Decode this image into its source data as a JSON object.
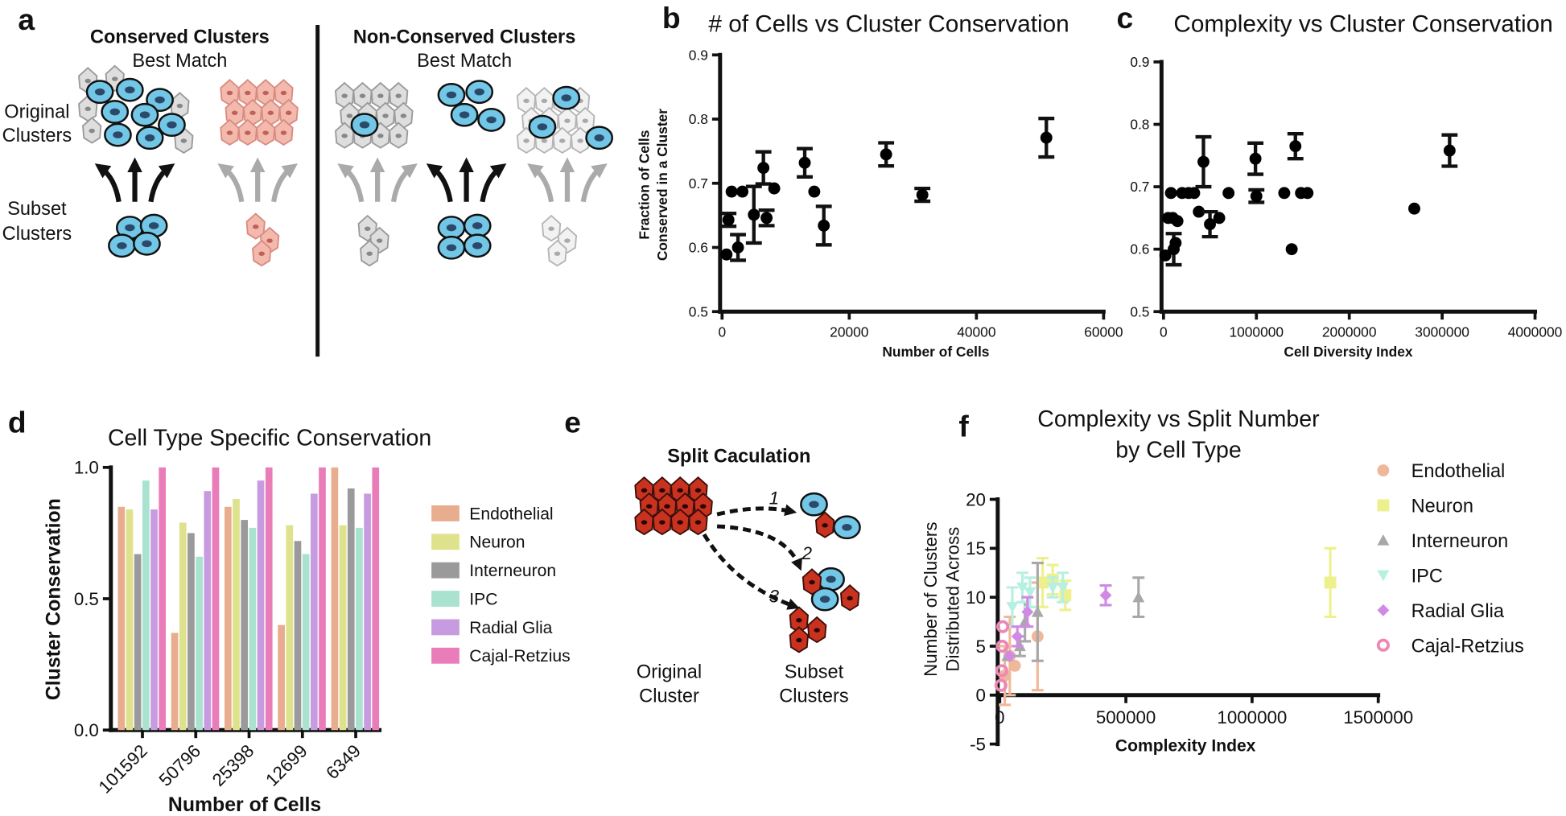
{
  "diagram_a": {
    "panel": "a",
    "conserved_title": "Conserved Clusters",
    "conserved_subtitle": "Best Match",
    "non_conserved_title": "Non-Conserved Clusters",
    "non_conserved_subtitle": "Best Match",
    "original_label": [
      "Original",
      "Clusters"
    ],
    "subset_label": [
      "Subset",
      "Clusters"
    ]
  },
  "diagram_e": {
    "panel": "e",
    "title": "Split Caculation",
    "steps": [
      "1",
      "2",
      "3"
    ],
    "original_label": [
      "Original",
      "Cluster"
    ],
    "subset_label": [
      "Subset",
      "Clusters"
    ]
  },
  "chart_data": [
    {
      "type": "scatter",
      "panel": "b",
      "title": "# of Cells vs Cluster Conservation",
      "x_label": "Number of Cells",
      "y_label": [
        "Fraction of Cells",
        "Conserved in a Cluster"
      ],
      "color": "#000000",
      "marker": "circle",
      "x": [
        700,
        1000,
        1500,
        2500,
        3200,
        5000,
        6500,
        7000,
        8200,
        13000,
        14500,
        16000,
        25800,
        31500,
        51000
      ],
      "values": [
        0.589,
        0.643,
        0.687,
        0.6,
        0.687,
        0.651,
        0.724,
        0.646,
        0.692,
        0.732,
        0.687,
        0.634,
        0.745,
        0.682,
        0.771
      ],
      "errors": [
        null,
        0.01,
        null,
        0.02,
        null,
        0.044,
        0.025,
        0.012,
        null,
        0.022,
        null,
        0.03,
        0.018,
        0.01,
        0.03
      ],
      "xlim": [
        0,
        60000
      ],
      "xticks": [
        0,
        20000,
        40000,
        60000
      ],
      "ylim": [
        0.5,
        0.9
      ],
      "yticks": [
        0.5,
        0.6,
        0.7,
        0.8,
        0.9
      ]
    },
    {
      "type": "scatter",
      "panel": "c",
      "title": "Complexity vs Cluster Conservation",
      "x_label": "Cell Diversity Index",
      "color": "#000000",
      "marker": "circle",
      "x": [
        20000,
        50000,
        80000,
        100000,
        110000,
        130000,
        150000,
        200000,
        270000,
        330000,
        380000,
        430000,
        500000,
        600000,
        700000,
        990000,
        1000000,
        1300000,
        1380000,
        1420000,
        1480000,
        1550000,
        2700000,
        3080000
      ],
      "values": [
        0.59,
        0.65,
        0.69,
        0.65,
        0.6,
        0.61,
        0.645,
        0.69,
        0.69,
        0.69,
        0.66,
        0.74,
        0.64,
        0.65,
        0.69,
        0.745,
        0.685,
        0.69,
        0.6,
        0.765,
        0.69,
        0.69,
        0.665,
        0.758
      ],
      "errors": [
        null,
        null,
        null,
        null,
        0.025,
        null,
        null,
        null,
        null,
        null,
        null,
        0.04,
        0.02,
        null,
        null,
        0.025,
        0.01,
        null,
        null,
        0.02,
        null,
        null,
        null,
        0.025
      ],
      "xlim": [
        0,
        4000000
      ],
      "xticks": [
        0,
        1000000,
        2000000,
        3000000,
        4000000
      ],
      "ylim": [
        0.5,
        0.9
      ],
      "yticks": [
        0.5,
        0.6,
        0.7,
        0.8,
        0.9
      ]
    },
    {
      "type": "bar",
      "panel": "d",
      "title": "Cell Type Specific Conservation",
      "x_label": "Number of Cells",
      "y_label": "Cluster Conservation",
      "categories": [
        "101592",
        "50796",
        "25398",
        "12699",
        "6349"
      ],
      "series": [
        {
          "name": "Endothelial",
          "color": "#e8ad8f",
          "values": [
            0.85,
            0.37,
            0.85,
            0.4,
            1.0
          ]
        },
        {
          "name": "Neuron",
          "color": "#dfe28c",
          "values": [
            0.84,
            0.79,
            0.88,
            0.78,
            0.78
          ]
        },
        {
          "name": "Interneuron",
          "color": "#9a9a9a",
          "values": [
            0.67,
            0.75,
            0.8,
            0.72,
            0.92
          ]
        },
        {
          "name": "IPC",
          "color": "#a9e2cf",
          "values": [
            0.95,
            0.66,
            0.77,
            0.67,
            0.77
          ]
        },
        {
          "name": "Radial Glia",
          "color": "#c79be0",
          "values": [
            0.84,
            0.91,
            0.95,
            0.9,
            0.9
          ]
        },
        {
          "name": "Cajal-Retzius",
          "color": "#ea7cba",
          "values": [
            1.0,
            1.0,
            1.0,
            1.0,
            1.0
          ]
        }
      ],
      "ylim": [
        0,
        1
      ],
      "yticks": [
        {
          "value": 0,
          "label": "0.0"
        },
        0.5,
        {
          "value": 1,
          "label": "1.0"
        }
      ]
    },
    {
      "type": "scatter",
      "panel": "f",
      "title": [
        "Complexity vs Split Number",
        "by Cell Type"
      ],
      "x_label": "Complexity Index",
      "y_label": [
        "Number of Clusters",
        "Distributed Across"
      ],
      "series": [
        {
          "name": "Endothelial",
          "color": "#f0b89a",
          "marker": "circle",
          "x": [
            20000,
            40000,
            60000,
            150000
          ],
          "values": [
            2,
            4,
            3,
            6
          ],
          "errors": [
            3,
            4,
            null,
            5.5
          ]
        },
        {
          "name": "Neuron",
          "color": "#eef08e",
          "marker": "square",
          "x": [
            170000,
            210000,
            260000,
            1310000
          ],
          "values": [
            11.5,
            11.8,
            10.2,
            11.5
          ],
          "errors": [
            2.5,
            1.5,
            1.5,
            3.5
          ]
        },
        {
          "name": "Interneuron",
          "color": "#a8a8a8",
          "marker": "triangle",
          "x": [
            30000,
            80000,
            100000,
            150000,
            550000
          ],
          "values": [
            4,
            5,
            7.5,
            8.5,
            10
          ],
          "errors": [
            null,
            1,
            2,
            5,
            2
          ]
        },
        {
          "name": "IPC",
          "color": "#b6f0e0",
          "marker": "triangle-down",
          "x": [
            50000,
            90000,
            120000,
            210000,
            250000
          ],
          "values": [
            9,
            11,
            10.5,
            11,
            11
          ],
          "errors": [
            2,
            1.5,
            1.5,
            1,
            1.5
          ]
        },
        {
          "name": "Radial Glia",
          "color": "#d08ae6",
          "marker": "diamond",
          "x": [
            40000,
            70000,
            110000,
            420000
          ],
          "values": [
            4,
            6,
            8.5,
            10.2
          ],
          "errors": [
            null,
            1,
            1.5,
            1
          ]
        },
        {
          "name": "Cajal-Retzius",
          "color": "#ee86b6",
          "marker": "ring",
          "x": [
            5000,
            8000,
            10000,
            12000
          ],
          "values": [
            1,
            2.5,
            5,
            7
          ],
          "errors": [
            null,
            null,
            null,
            null
          ]
        }
      ],
      "xlim": [
        0,
        1500000
      ],
      "xticks": [
        0,
        500000,
        1000000,
        1500000
      ],
      "ylim": [
        -5,
        20
      ],
      "yticks": [
        -5,
        0,
        5,
        10,
        15,
        20
      ]
    }
  ]
}
